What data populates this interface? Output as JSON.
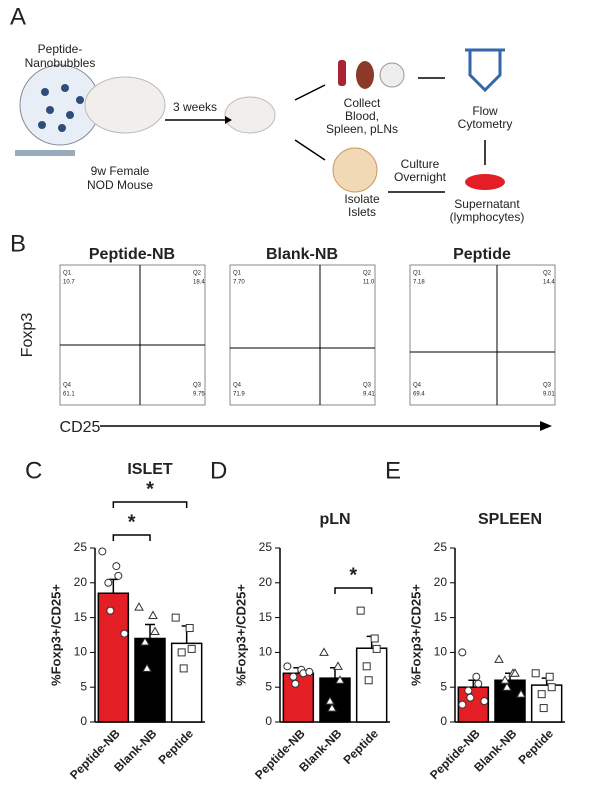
{
  "panel_a": {
    "label": "A",
    "texts": [
      "Peptide-",
      "Nanobubbles",
      "9w Female",
      "NOD Mouse",
      "3 weeks",
      "Collect",
      "Blood,",
      "Spleen, pLNs",
      "Flow",
      "Cytometry",
      "Culture",
      "Overnight",
      "Isolate",
      "Islets",
      "Supernatant",
      "(lymphocytes)"
    ]
  },
  "panel_b": {
    "label": "B",
    "y_label": "Foxp3",
    "x_label": "CD25",
    "plots": [
      {
        "title": "Peptide-NB",
        "quadrants": [
          "Q1",
          "10.7",
          "Q2",
          "18.4",
          "Q4",
          "61.1",
          "Q3",
          "9.75"
        ]
      },
      {
        "title": "Blank-NB",
        "quadrants": [
          "Q1",
          "7.70",
          "Q2",
          "11.0",
          "Q4",
          "71.9",
          "Q3",
          "9.41"
        ]
      },
      {
        "title": "Peptide",
        "quadrants": [
          "Q1",
          "7.18",
          "Q2",
          "14.4",
          "Q4",
          "69.4",
          "Q3",
          "9.01"
        ]
      }
    ]
  },
  "chart_data": [
    {
      "type": "bar",
      "panel": "C",
      "title": "ISLET",
      "y_label": "%Foxp3+/CD25+",
      "categories": [
        "Peptide-NB",
        "Blank-NB",
        "Peptide"
      ],
      "values": [
        18.5,
        12,
        11.3
      ],
      "errors": [
        2,
        2,
        2.5
      ],
      "colors": [
        "#e31e24",
        "#000000",
        "#ffffff"
      ],
      "markers": [
        "circle",
        "triangle",
        "square"
      ],
      "points": [
        [
          24.5,
          22.4,
          21,
          20,
          16,
          12.7
        ],
        [
          16.5,
          15.3,
          13,
          11.5,
          7.7
        ],
        [
          15,
          13.5,
          10.5,
          10,
          7.7
        ]
      ],
      "ylim": [
        0,
        25
      ],
      "yticks": [
        0,
        5,
        10,
        15,
        20,
        25
      ],
      "significance": [
        "*",
        "*"
      ]
    },
    {
      "type": "bar",
      "panel": "D",
      "title": "pLN",
      "y_label": "%Foxp3+/CD25+",
      "categories": [
        "Peptide-NB",
        "Blank-NB",
        "Peptide"
      ],
      "values": [
        7,
        6.3,
        10.6
      ],
      "errors": [
        0.8,
        1.5,
        1.7
      ],
      "colors": [
        "#e31e24",
        "#000000",
        "#ffffff"
      ],
      "markers": [
        "circle",
        "triangle",
        "square"
      ],
      "points": [
        [
          8,
          7.5,
          7,
          6.5,
          5.5,
          7.2
        ],
        [
          10,
          8,
          6,
          3,
          2
        ],
        [
          16,
          12,
          10.5,
          8,
          6
        ]
      ],
      "ylim": [
        0,
        25
      ],
      "yticks": [
        0,
        5,
        10,
        15,
        20,
        25
      ],
      "significance": [
        "*"
      ]
    },
    {
      "type": "bar",
      "panel": "E",
      "title": "SPLEEN",
      "y_label": "%Foxp3+/CD25+",
      "categories": [
        "Peptide-NB",
        "Blank-NB",
        "Peptide"
      ],
      "values": [
        5,
        6,
        5.3
      ],
      "errors": [
        1,
        1,
        1
      ],
      "colors": [
        "#e31e24",
        "#000000",
        "#ffffff"
      ],
      "markers": [
        "circle",
        "triangle",
        "square"
      ],
      "points": [
        [
          10,
          6.5,
          5.5,
          4.5,
          3.5,
          3,
          2.5
        ],
        [
          9,
          7,
          7,
          6,
          5,
          4
        ],
        [
          7,
          6.5,
          5,
          4,
          2
        ]
      ],
      "ylim": [
        0,
        25
      ],
      "yticks": [
        0,
        5,
        10,
        15,
        20,
        25
      ],
      "significance": []
    }
  ]
}
